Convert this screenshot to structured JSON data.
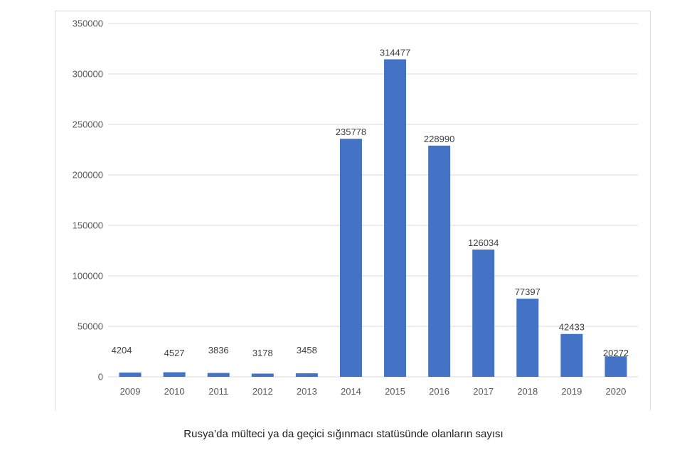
{
  "chart_data": {
    "type": "bar",
    "categories": [
      "2009",
      "2010",
      "2011",
      "2012",
      "2013",
      "2014",
      "2015",
      "2016",
      "2017",
      "2018",
      "2019",
      "2020"
    ],
    "values": [
      4204,
      4527,
      3836,
      3178,
      3458,
      235778,
      314477,
      228990,
      126034,
      77397,
      42433,
      20272
    ],
    "data_labels": [
      "4204",
      "4527",
      "3836",
      "3178",
      "3458",
      "235778",
      "314477",
      "228990",
      "126034",
      "77397",
      "42433",
      "20272"
    ],
    "yticks": [
      0,
      50000,
      100000,
      150000,
      200000,
      250000,
      300000,
      350000
    ],
    "ytick_labels": [
      "0",
      "50000",
      "100000",
      "150000",
      "200000",
      "250000",
      "300000",
      "350000"
    ],
    "ylim": [
      0,
      350000
    ],
    "grid": true,
    "legend": false,
    "bar_color": "#4472c4",
    "grid_color": "#d9d9d9",
    "title": "",
    "xlabel": "",
    "ylabel": ""
  },
  "caption": "Rusya’da mülteci ya da geçici sığınmacı statüsünde olanların sayısı"
}
